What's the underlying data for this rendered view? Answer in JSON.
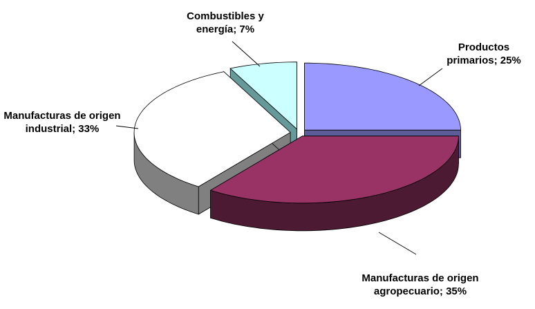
{
  "chart_data": {
    "type": "pie3d",
    "values": [
      25,
      35,
      33,
      7
    ],
    "value_labels": [
      "Productos primarios; 25%",
      "Manufacturas de origen agropecuario; 35%",
      "Manufacturas de origen industrial; 33%",
      "Combustibles y energía; 7%"
    ],
    "colors": [
      "#9999ff",
      "#993366",
      "#ffffff",
      "#ccffff"
    ],
    "side_colors": [
      "#5c5c99",
      "#4d1a33",
      "#808080",
      "#669999"
    ]
  }
}
